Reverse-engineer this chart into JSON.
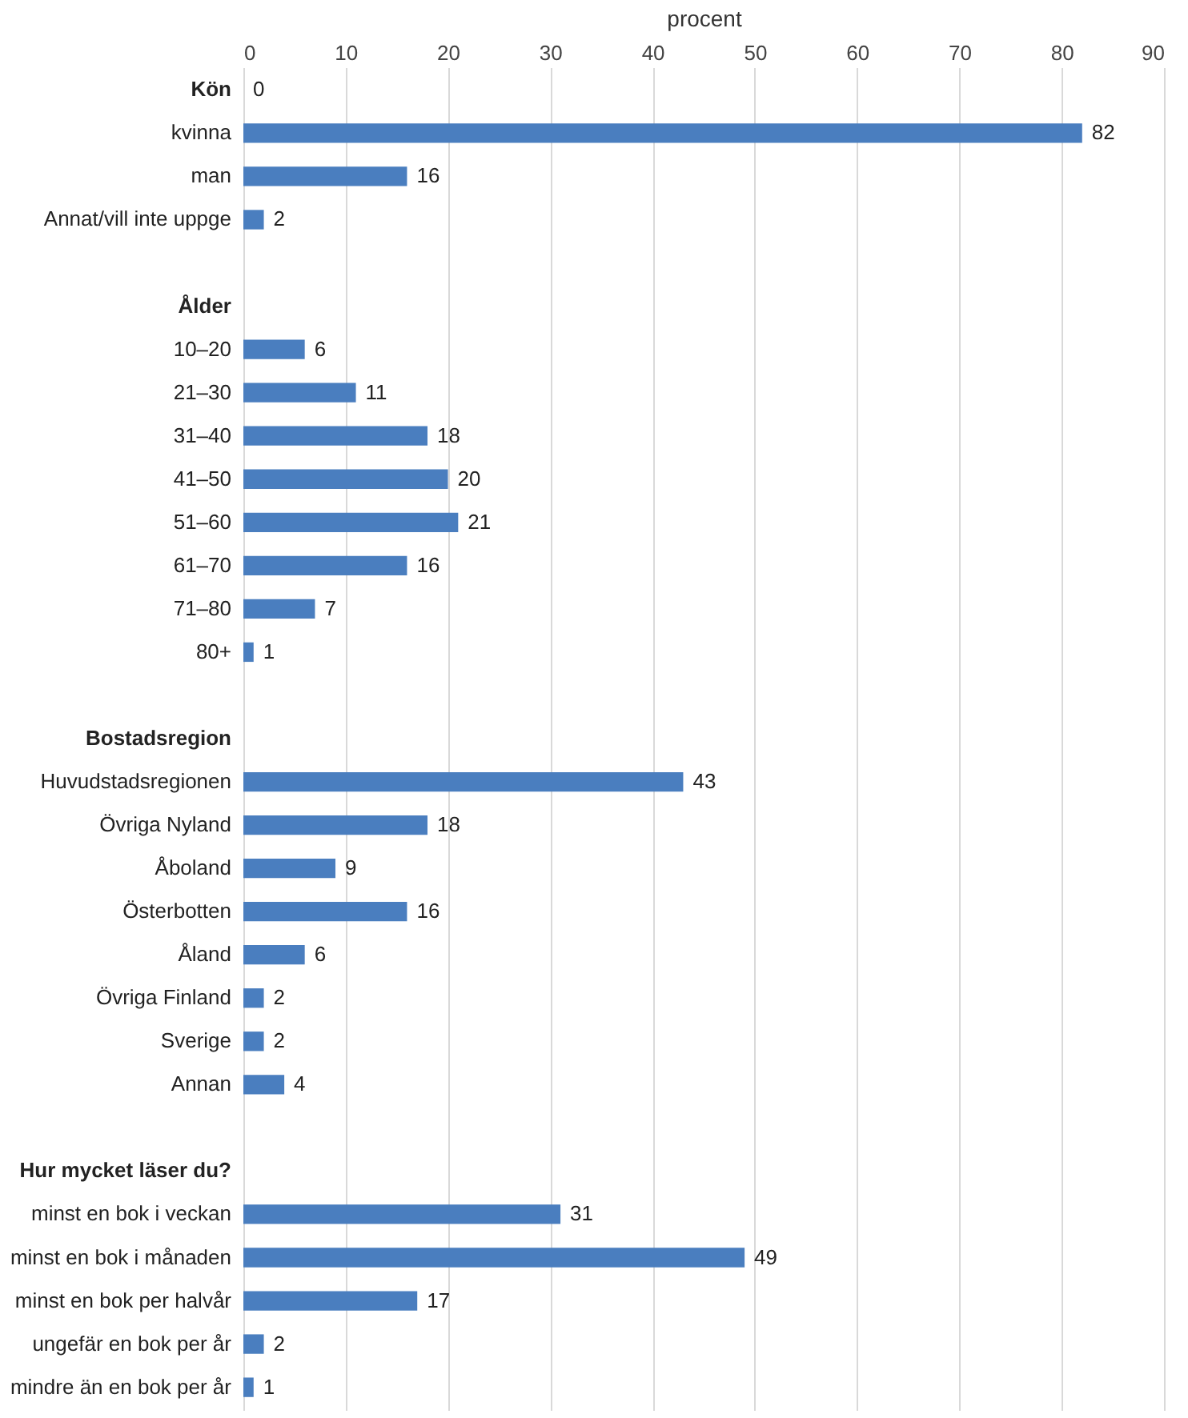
{
  "chart_data": {
    "type": "bar",
    "orientation": "horizontal",
    "xlabel": "procent",
    "categories": [
      "Kön",
      "kvinna",
      "man",
      "Annat/vill inte uppge",
      null,
      "Ålder",
      "10–20",
      "21–30",
      "31–40",
      "41–50",
      "51–60",
      "61–70",
      "71–80",
      "80+",
      null,
      "Bostadsregion",
      "Huvudstadsregionen",
      "Övriga Nyland",
      "Åboland",
      "Österbotten",
      "Åland",
      "Övriga Finland",
      "Sverige",
      "Annan",
      null,
      "Hur mycket läser du?",
      "minst en bok i veckan",
      "minst en bok i månaden",
      "minst en bok per halvår",
      "ungefär en bok per år",
      "mindre än en bok per år"
    ],
    "values": [
      0,
      82,
      16,
      2,
      null,
      null,
      6,
      11,
      18,
      20,
      21,
      16,
      7,
      1,
      null,
      null,
      43,
      18,
      9,
      16,
      6,
      2,
      2,
      4,
      null,
      null,
      31,
      49,
      17,
      2,
      1
    ],
    "color": "#4a7ebf",
    "xlim": [
      0,
      90
    ],
    "xticks": [
      0,
      10,
      20,
      30,
      40,
      50,
      60,
      70,
      80,
      90
    ],
    "grid": "x",
    "data_labels": true
  }
}
